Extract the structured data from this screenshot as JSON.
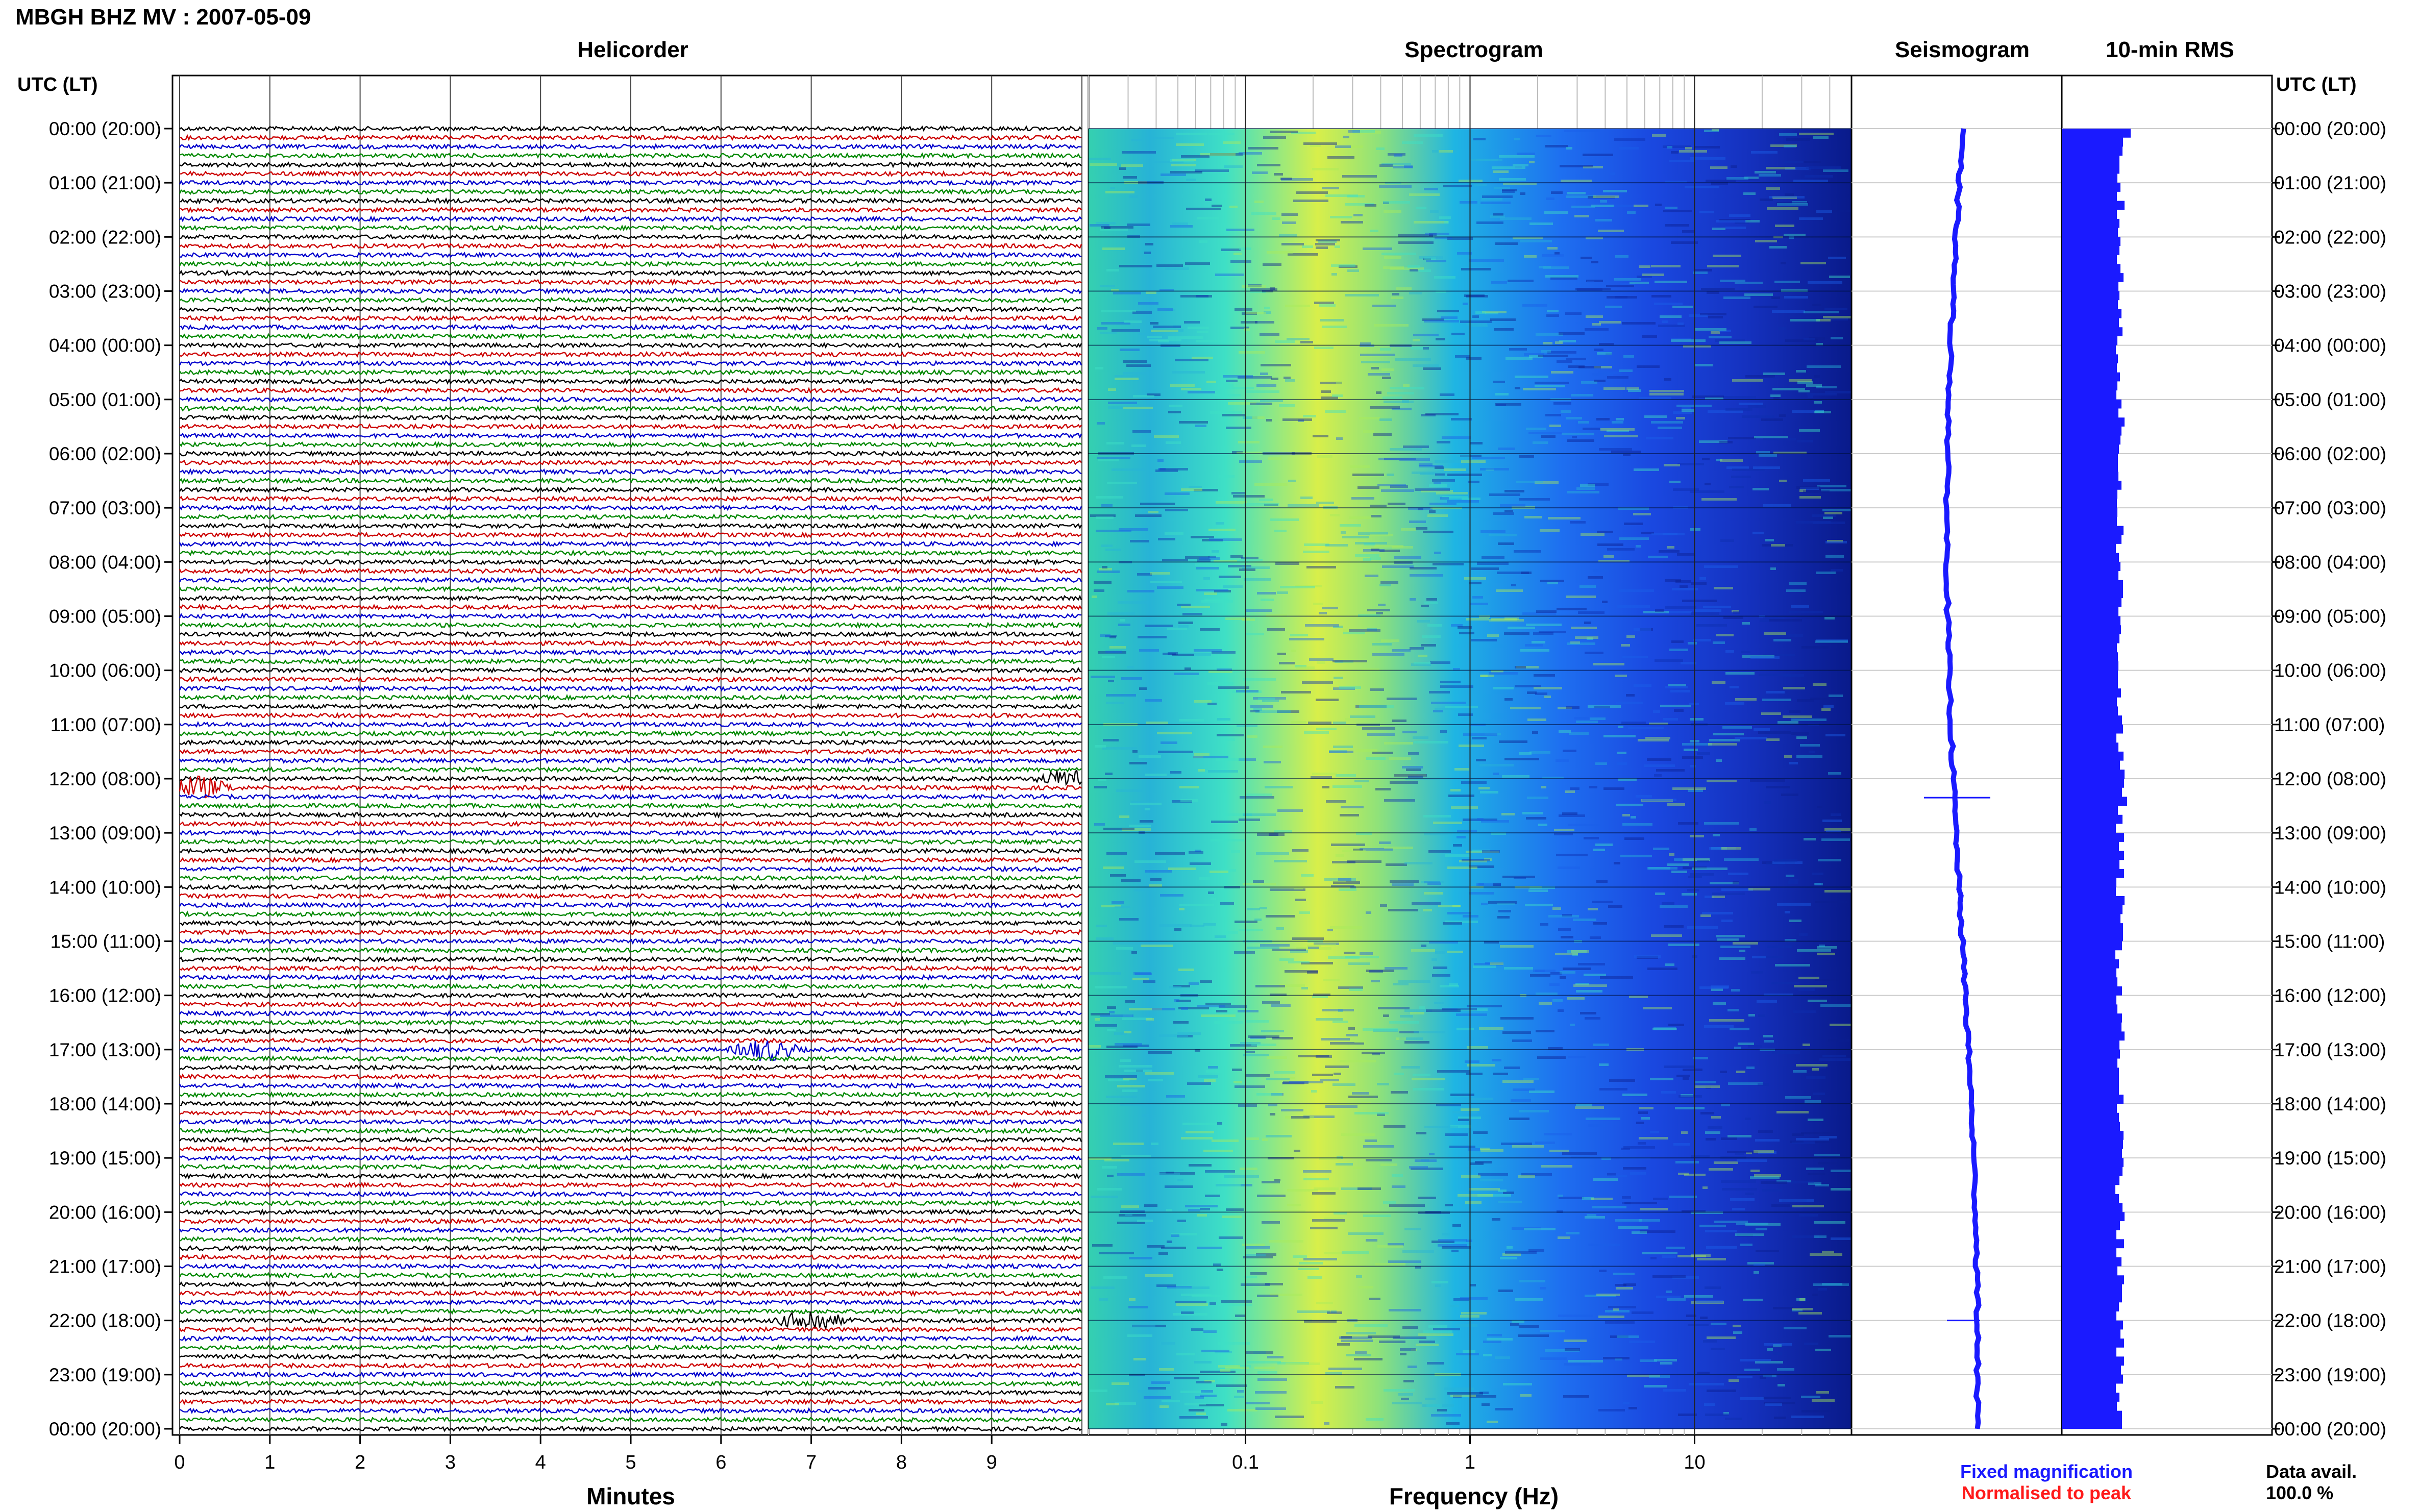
{
  "header": {
    "title": "MBGH BHZ MV : 2007-05-09",
    "utc_label_left": "UTC (LT)",
    "utc_label_right": "UTC (LT)"
  },
  "panels": {
    "helicorder": "Helicorder",
    "spectrogram": "Spectrogram",
    "seismogram": "Seismogram",
    "rms": "10-min RMS"
  },
  "footer": {
    "minutes_label": "Minutes",
    "frequency_label": "Frequency (Hz)",
    "fixed_magnification": "Fixed magnification",
    "normalised": "Normalised to peak",
    "data_avail_label": "Data avail.",
    "data_avail_value": "100.0 %"
  },
  "colors": {
    "fixed": "#1a1aff",
    "normalised": "#ff1a1a",
    "trace_cycle": [
      "#000000",
      "#cc0000",
      "#0000cc",
      "#008800"
    ],
    "seismogram": "#1a1aff",
    "rms": "#1a1aff"
  },
  "chart_data": {
    "type": "helicorder+spectrogram",
    "time_labels": [
      "00:00 (20:00)",
      "01:00 (21:00)",
      "02:00 (22:00)",
      "03:00 (23:00)",
      "04:00 (00:00)",
      "05:00 (01:00)",
      "06:00 (02:00)",
      "07:00 (03:00)",
      "08:00 (04:00)",
      "09:00 (05:00)",
      "10:00 (06:00)",
      "11:00 (07:00)",
      "12:00 (08:00)",
      "13:00 (09:00)",
      "14:00 (10:00)",
      "15:00 (11:00)",
      "16:00 (12:00)",
      "17:00 (13:00)",
      "18:00 (14:00)",
      "19:00 (15:00)",
      "20:00 (16:00)",
      "21:00 (17:00)",
      "22:00 (18:00)",
      "23:00 (19:00)",
      "00:00 (20:00)"
    ],
    "minutes_ticks": [
      "0",
      "1",
      "2",
      "3",
      "4",
      "5",
      "6",
      "7",
      "8",
      "9"
    ],
    "minutes_range": [
      0,
      10
    ],
    "freq_ticks": [
      {
        "value": 0.1,
        "label": "0.1"
      },
      {
        "value": 1,
        "label": "1"
      },
      {
        "value": 10,
        "label": "10"
      }
    ],
    "freq_range": [
      0.02,
      50
    ],
    "freq_scale": "log",
    "hours_per_day": 24,
    "rows_per_hour": 6,
    "events": [
      {
        "time_utc": "12:10",
        "minute": 0.2,
        "description": "burst"
      },
      {
        "time_utc": "12:00",
        "minute": 9.9,
        "description": "burst"
      },
      {
        "time_utc": "17:00",
        "minute": 6.5,
        "description": "burst"
      },
      {
        "time_utc": "22:00",
        "minute": 7.0,
        "description": "burst"
      }
    ]
  }
}
